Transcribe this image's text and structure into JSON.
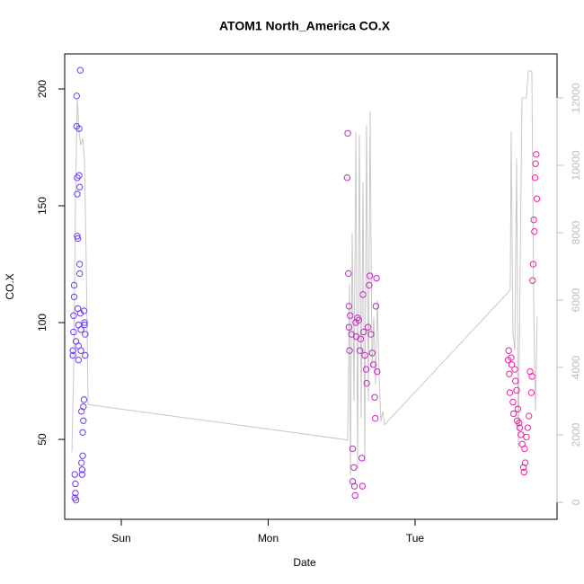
{
  "chart_data": {
    "type": "scatter",
    "title": "ATOM1 North_America CO.X",
    "xlabel": "Date",
    "ylabel": "CO.X",
    "xlim": [
      -9.25,
      71.2
    ],
    "xticks": [
      {
        "value": 0,
        "label": "Sun"
      },
      {
        "value": 24,
        "label": "Mon"
      },
      {
        "value": 48,
        "label": "Tue"
      }
    ],
    "ylim": [
      15.8,
      215
    ],
    "yticks": [
      50,
      100,
      150,
      200
    ],
    "y2lim": [
      -507,
      13307
    ],
    "y2ticks": [
      0,
      2000,
      4000,
      6000,
      8000,
      10000,
      12000
    ],
    "y2color": "#bebebe",
    "series": [
      {
        "type": "line",
        "axis": "y2",
        "color": "#c8c8c8",
        "x": [
          -8.07,
          -7.78,
          -7.49,
          -7.19,
          -6.9,
          -6.61,
          -6.31,
          -6.02,
          -5.72,
          -5.43,
          36.99,
          37.29,
          37.43,
          37.73,
          38.02,
          38.32,
          38.61,
          38.9,
          39.2,
          39.49,
          39.78,
          40.07,
          40.37,
          40.66,
          40.96,
          41.25,
          41.54,
          41.84,
          42.13,
          42.42,
          42.72,
          43.01,
          63.56,
          63.71,
          64.0,
          64.3,
          64.59,
          64.88,
          65.18,
          65.47,
          65.76,
          66.2,
          66.5,
          67.08,
          67.38,
          67.67,
          67.96
        ],
        "values": [
          1500,
          4000,
          9000,
          12000,
          11000,
          10600,
          10800,
          10200,
          7000,
          2900,
          1850,
          6500,
          800,
          8000,
          3000,
          11000,
          1000,
          10900,
          2500,
          9500,
          1200,
          11200,
          3000,
          11600,
          4000,
          5500,
          3500,
          6000,
          3800,
          2400,
          2700,
          2300,
          6300,
          11000,
          5000,
          4500,
          10200,
          1600,
          7000,
          12000,
          12000,
          12000,
          12800,
          12800,
          6000,
          2700,
          5500
        ]
      },
      {
        "type": "scatter",
        "color_range": [
          "#6a3cf5",
          "#ff1a9c"
        ],
        "x": [
          -7.9,
          -7.9,
          -7.8,
          -7.8,
          -7.7,
          -7.7,
          -7.6,
          -7.6,
          -7.5,
          -7.5,
          -7.4,
          -7.4,
          -7.3,
          -7.3,
          -7.2,
          -7.2,
          -7.2,
          -7.1,
          -7.1,
          -7.0,
          -7.0,
          -7.0,
          -6.9,
          -6.9,
          -6.8,
          -6.8,
          -6.8,
          -6.7,
          -6.7,
          -6.6,
          -6.6,
          -6.5,
          -6.5,
          -6.4,
          -6.4,
          -6.3,
          -6.3,
          -6.2,
          -6.2,
          -6.1,
          -6.1,
          -6.0,
          -6.0,
          -5.9,
          -5.9,
          37.0,
          36.9,
          37.1,
          37.2,
          37.2,
          37.3,
          37.4,
          37.6,
          37.8,
          37.8,
          38.0,
          38.1,
          38.2,
          38.3,
          38.4,
          38.6,
          38.8,
          39.0,
          39.1,
          39.3,
          39.4,
          39.5,
          39.6,
          39.8,
          40.0,
          40.1,
          40.3,
          40.5,
          40.6,
          40.8,
          41.0,
          41.2,
          41.4,
          41.5,
          41.6,
          41.7,
          41.8,
          63.2,
          63.3,
          63.4,
          63.5,
          63.7,
          63.8,
          64.0,
          64.1,
          64.3,
          64.4,
          64.6,
          64.7,
          64.8,
          65.0,
          65.1,
          65.3,
          65.5,
          65.7,
          65.8,
          65.9,
          66.0,
          66.2,
          66.4,
          66.6,
          66.8,
          67.0,
          67.1,
          67.2,
          67.3,
          67.4,
          67.5,
          67.6,
          67.7,
          67.8,
          67.9
        ],
        "values": [
          86,
          88,
          96,
          103,
          116,
          111,
          35,
          25,
          27,
          31,
          24,
          92,
          197,
          184,
          162,
          155,
          137,
          136,
          106,
          99,
          90,
          84,
          183,
          163,
          158,
          125,
          121,
          208,
          104,
          97,
          88,
          62,
          40,
          37,
          35,
          43,
          53,
          58,
          64,
          67,
          105,
          99,
          100,
          86,
          95,
          181,
          162,
          121,
          107,
          98,
          88,
          103,
          95,
          46,
          32,
          38,
          30,
          26,
          100,
          94,
          102,
          101,
          88,
          93,
          42,
          30,
          112,
          96,
          86,
          80,
          74,
          98,
          116,
          120,
          95,
          87,
          82,
          68,
          59,
          107,
          119,
          79,
          84,
          88,
          78,
          70,
          85,
          82,
          66,
          61,
          80,
          75,
          71,
          58,
          63,
          57,
          55,
          52,
          48,
          38,
          36,
          46,
          40,
          51,
          55,
          60,
          79,
          70,
          77,
          118,
          125,
          144,
          139,
          162,
          168,
          172,
          153
        ]
      }
    ]
  }
}
